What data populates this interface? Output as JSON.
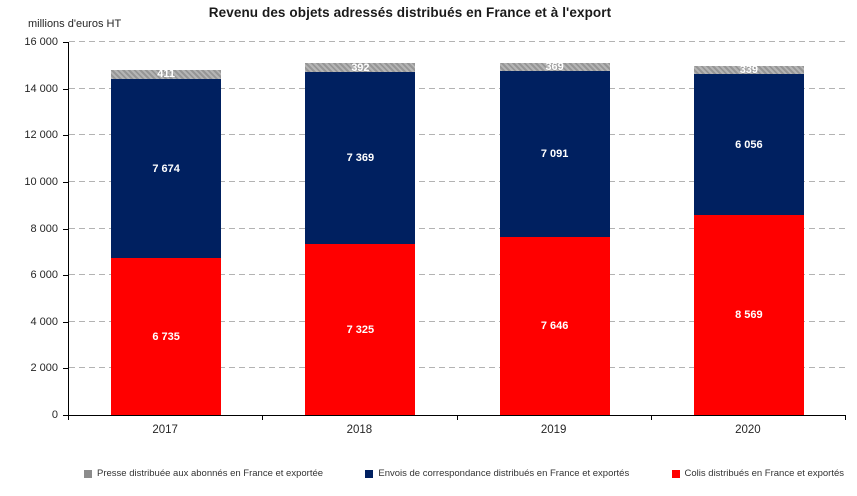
{
  "chart_data": {
    "type": "bar",
    "stacked": true,
    "title": "Revenu des objets adressés distribués en France et à l'export",
    "ylabel": "millions d'euros HT",
    "categories": [
      "2017",
      "2018",
      "2019",
      "2020"
    ],
    "series": [
      {
        "name": "Colis distribués en France et exportés",
        "color": "#FF0000",
        "pattern": "solid",
        "values": [
          6735,
          7325,
          7646,
          8569
        ]
      },
      {
        "name": "Envois de correspondance distribués en France et exportés",
        "color": "#002060",
        "pattern": "solid",
        "values": [
          7674,
          7369,
          7091,
          6056
        ]
      },
      {
        "name": "Presse distribuée aux abonnés en France et exportée",
        "color": "#A6A6A6",
        "pattern": "hatch",
        "values": [
          411,
          392,
          369,
          339
        ]
      }
    ],
    "legend": [
      {
        "label": "Presse distribuée aux abonnés en France et exportée",
        "color": "#8c8c8c"
      },
      {
        "label": "Envois de correspondance distribués en France et exportés",
        "color": "#002060"
      },
      {
        "label": "Colis distribués en France et exportés",
        "color": "#FF0000"
      }
    ],
    "ylim": [
      0,
      16000
    ],
    "ytick_step": 2000,
    "grid": "horizontal-dashed",
    "legend_position": "bottom",
    "value_labels": "inside-white-bold",
    "colors": {
      "gridline": "#b3b3b3",
      "axis": "#000000",
      "text": "#262626",
      "background": "#ffffff"
    }
  }
}
